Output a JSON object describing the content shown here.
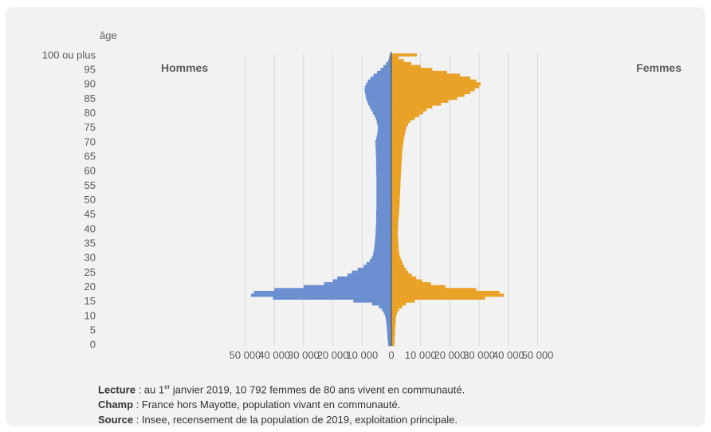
{
  "chart_data": {
    "type": "bar",
    "orientation": "horizontal-pyramid",
    "ylabel": "âge",
    "y_tick_labels": [
      "0",
      "5",
      "10",
      "15",
      "20",
      "25",
      "30",
      "35",
      "40",
      "45",
      "50",
      "55",
      "60",
      "65",
      "70",
      "75",
      "80",
      "85",
      "90",
      "95",
      "100 ou plus"
    ],
    "x_tick_labels": [
      "50 000",
      "40 000",
      "30 000",
      "20 000",
      "10 000",
      "0",
      "10 000",
      "20 000",
      "30 000",
      "40 000",
      "50 000"
    ],
    "xlim": [
      -50000,
      50000
    ],
    "grid": true,
    "series": [
      {
        "name": "Hommes",
        "side": "left",
        "color": "#6a8ed0",
        "ages": [
          0,
          1,
          2,
          3,
          4,
          5,
          6,
          7,
          8,
          9,
          10,
          11,
          12,
          13,
          14,
          15,
          16,
          17,
          18,
          19,
          20,
          21,
          22,
          23,
          24,
          25,
          26,
          27,
          28,
          29,
          30,
          31,
          32,
          33,
          34,
          35,
          36,
          37,
          38,
          39,
          40,
          41,
          42,
          43,
          44,
          45,
          46,
          47,
          48,
          49,
          50,
          51,
          52,
          53,
          54,
          55,
          56,
          57,
          58,
          59,
          60,
          61,
          62,
          63,
          64,
          65,
          66,
          67,
          68,
          69,
          70,
          71,
          72,
          73,
          74,
          75,
          76,
          77,
          78,
          79,
          80,
          81,
          82,
          83,
          84,
          85,
          86,
          87,
          88,
          89,
          90,
          91,
          92,
          93,
          94,
          95,
          96,
          97,
          98,
          99,
          100
        ],
        "values": [
          1100,
          1200,
          1300,
          1400,
          1400,
          1500,
          1600,
          1700,
          1800,
          1900,
          2200,
          2600,
          3200,
          4300,
          6600,
          13000,
          40500,
          48000,
          47000,
          40000,
          30000,
          23000,
          20000,
          18500,
          15000,
          13500,
          11500,
          9500,
          8500,
          7400,
          6700,
          6300,
          6100,
          5900,
          5800,
          5700,
          5600,
          5500,
          5400,
          5400,
          5300,
          5300,
          5200,
          5200,
          5200,
          5200,
          5200,
          5100,
          5100,
          5100,
          5100,
          5100,
          5100,
          5100,
          5100,
          5100,
          5100,
          5100,
          5100,
          5200,
          5200,
          5200,
          5200,
          5200,
          5200,
          5300,
          5300,
          5300,
          5400,
          5400,
          5500,
          5200,
          5000,
          4800,
          4700,
          4600,
          4800,
          5000,
          5300,
          5800,
          6300,
          6900,
          7400,
          7900,
          8300,
          8700,
          8800,
          9000,
          9200,
          9000,
          8600,
          8000,
          7200,
          6100,
          4900,
          3700,
          2700,
          1800,
          1100,
          800,
          600
        ]
      },
      {
        "name": "Femmes",
        "side": "right",
        "color": "#e9a126",
        "ages": [
          0,
          1,
          2,
          3,
          4,
          5,
          6,
          7,
          8,
          9,
          10,
          11,
          12,
          13,
          14,
          15,
          16,
          17,
          18,
          19,
          20,
          21,
          22,
          23,
          24,
          25,
          26,
          27,
          28,
          29,
          30,
          31,
          32,
          33,
          34,
          35,
          36,
          37,
          38,
          39,
          40,
          41,
          42,
          43,
          44,
          45,
          46,
          47,
          48,
          49,
          50,
          51,
          52,
          53,
          54,
          55,
          56,
          57,
          58,
          59,
          60,
          61,
          62,
          63,
          64,
          65,
          66,
          67,
          68,
          69,
          70,
          71,
          72,
          73,
          74,
          75,
          76,
          77,
          78,
          79,
          80,
          81,
          82,
          83,
          84,
          85,
          86,
          87,
          88,
          89,
          90,
          91,
          92,
          93,
          94,
          95,
          96,
          97,
          98,
          99,
          100
        ],
        "values": [
          1000,
          1100,
          1100,
          1200,
          1200,
          1300,
          1300,
          1400,
          1500,
          1500,
          1700,
          2000,
          2600,
          3700,
          5000,
          8000,
          32000,
          38500,
          37000,
          29000,
          18500,
          13500,
          10500,
          8500,
          7000,
          5800,
          5000,
          4400,
          3900,
          3500,
          3100,
          2800,
          2600,
          2500,
          2400,
          2400,
          2300,
          2300,
          2200,
          2200,
          2300,
          2300,
          2300,
          2400,
          2500,
          2600,
          2700,
          2700,
          2800,
          2800,
          2900,
          2900,
          3000,
          3000,
          3100,
          3100,
          3100,
          3200,
          3200,
          3300,
          3300,
          3400,
          3400,
          3500,
          3600,
          3600,
          3700,
          3800,
          3900,
          4000,
          4100,
          4300,
          4500,
          4700,
          4900,
          5200,
          5700,
          6500,
          8000,
          9500,
          10792,
          12000,
          14000,
          17000,
          19500,
          22500,
          25000,
          27000,
          28500,
          30000,
          30500,
          29000,
          27000,
          23500,
          19000,
          14000,
          10000,
          6800,
          4300,
          2500,
          8700
        ]
      }
    ]
  },
  "notes": {
    "lecture_label": "Lecture",
    "lecture_text_1": " : au 1",
    "lecture_sup": "er",
    "lecture_text_2": " janvier 2019, 10 792 femmes de 80 ans vivent en communauté.",
    "champ_label": "Champ",
    "champ_text": " : France hors Mayotte, population vivant en communauté.",
    "source_label": "Source",
    "source_text": " : Insee, recensement de la population de 2019, exploitation principale."
  }
}
